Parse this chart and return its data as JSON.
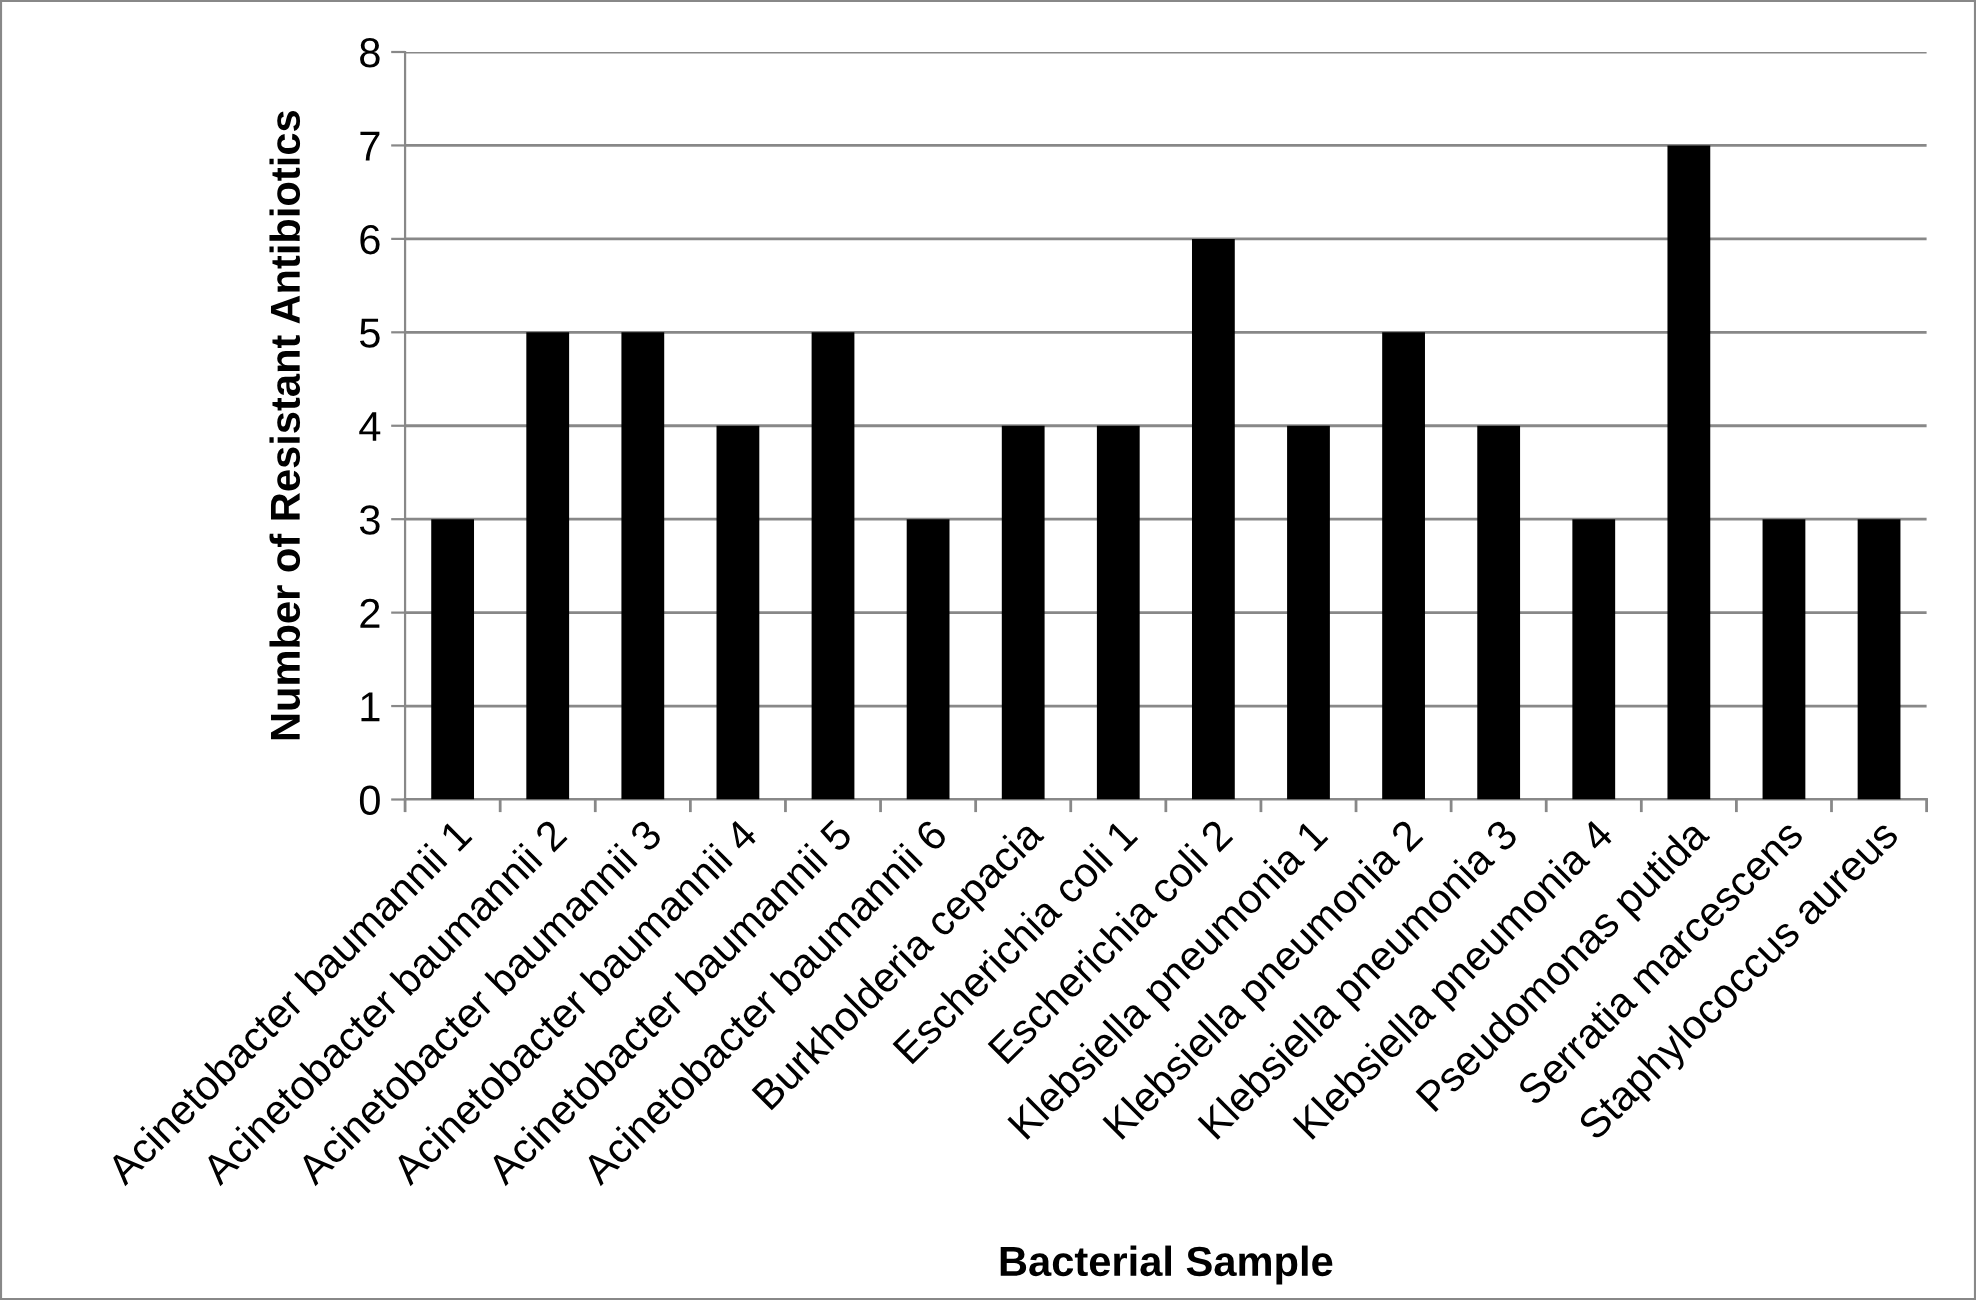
{
  "chart_data": {
    "type": "bar",
    "xlabel": "Bacterial Sample",
    "ylabel": "Number of Resistant Antibiotics",
    "categories": [
      "Acinetobacter baumannii 1",
      "Acinetobacter baumannii 2",
      "Acinetobacter baumannii 3",
      "Acinetobacter baumannii 4",
      "Acinetobacter baumannii 5",
      "Acinetobacter baumannii 6",
      "Burkholderia cepacia",
      "Escherichia coli 1",
      "Escherichia coli 2",
      "Klebsiella pneumonia 1",
      "Klebsiella pneumonia 2",
      "Klebsiella pneumonia 3",
      "Klebsiella pneumonia 4",
      "Pseudomonas putida",
      "Serratia marcescens",
      "Staphylococcus aureus"
    ],
    "values": [
      3,
      5,
      5,
      4,
      5,
      3,
      4,
      4,
      6,
      4,
      5,
      4,
      3,
      7,
      3,
      3
    ],
    "color": "#000000",
    "ylim": [
      0,
      8
    ],
    "yticks": [
      0,
      1,
      2,
      3,
      4,
      5,
      6,
      7,
      8
    ],
    "grid": "y"
  }
}
